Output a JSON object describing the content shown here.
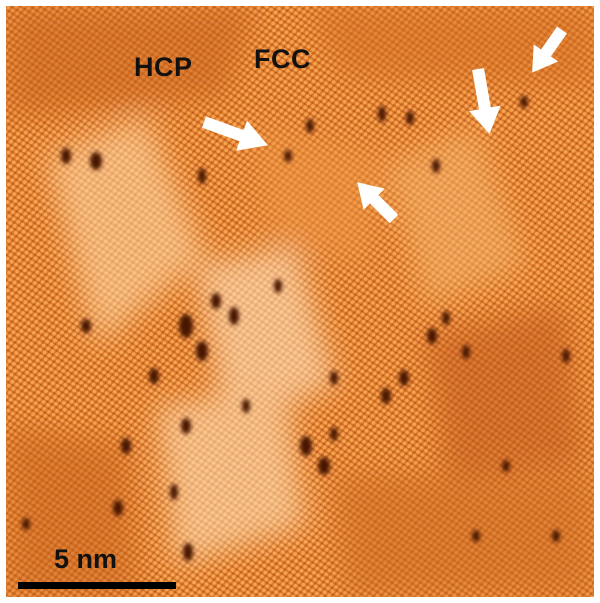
{
  "image": {
    "description_tags": [
      "stm-micrograph",
      "atomic-lattice"
    ],
    "colormap": [
      "#5a1c00",
      "#a84410",
      "#d8701c",
      "#f09a3a",
      "#ffe0b0"
    ],
    "base_color": "#d9772a"
  },
  "labels": {
    "hcp": "HCP",
    "fcc": "FCC"
  },
  "scalebar": {
    "label": "5 nm"
  },
  "arrows": {
    "color": "#ffffff",
    "count": 4
  }
}
